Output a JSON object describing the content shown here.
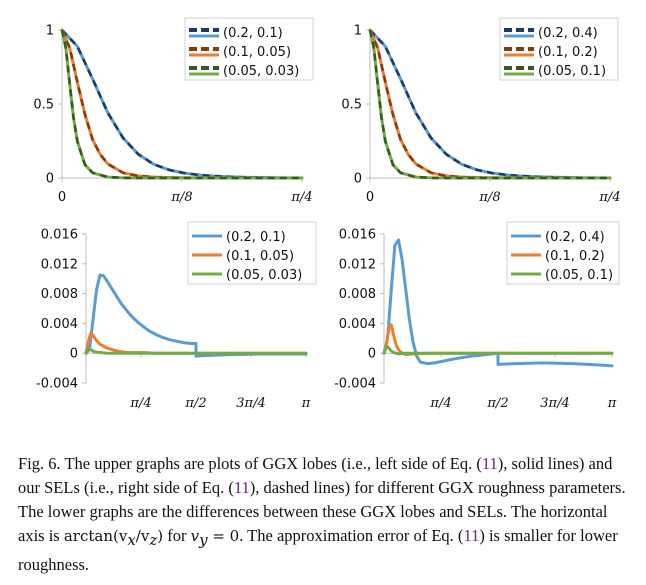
{
  "chart_data": [
    {
      "type": "line",
      "panel": "top-left",
      "xlim": [
        0,
        0.7854
      ],
      "ylim": [
        0,
        1
      ],
      "x_ticks": [
        {
          "v": 0,
          "label": "0"
        },
        {
          "v": 0.3927,
          "label": "π/8"
        },
        {
          "v": 0.7854,
          "label": "π/4"
        }
      ],
      "y_ticks": [
        {
          "v": 0,
          "label": "0"
        },
        {
          "v": 0.5,
          "label": "0.5"
        },
        {
          "v": 1,
          "label": "1"
        }
      ],
      "legend_position": "top-right",
      "series": [
        {
          "name": "(0.2, 0.1)",
          "color": "#5b9bd5",
          "dashed_color": "#1f3864",
          "x": [
            0,
            0.05,
            0.1,
            0.15,
            0.2,
            0.25,
            0.3,
            0.35,
            0.4,
            0.45,
            0.5,
            0.55,
            0.6,
            0.65,
            0.7,
            0.75,
            0.7854
          ],
          "y": [
            1.0,
            0.89,
            0.67,
            0.44,
            0.27,
            0.16,
            0.093,
            0.055,
            0.033,
            0.02,
            0.013,
            0.008,
            0.005,
            0.003,
            0.002,
            0.001,
            0.001
          ]
        },
        {
          "name": "(0.1, 0.05)",
          "color": "#ed7d31",
          "dashed_color": "#843c0c",
          "x": [
            0,
            0.025,
            0.05,
            0.075,
            0.1,
            0.125,
            0.15,
            0.2,
            0.25,
            0.3,
            0.35,
            0.4,
            0.5,
            0.6,
            0.7854
          ],
          "y": [
            1.0,
            0.88,
            0.65,
            0.43,
            0.26,
            0.16,
            0.095,
            0.035,
            0.014,
            0.006,
            0.003,
            0.002,
            0.001,
            0,
            0
          ]
        },
        {
          "name": "(0.05, 0.03)",
          "color": "#70ad47",
          "dashed_color": "#385723",
          "x": [
            0,
            0.0125,
            0.025,
            0.0375,
            0.05,
            0.075,
            0.1,
            0.15,
            0.2,
            0.3,
            0.7854
          ],
          "y": [
            1.0,
            0.88,
            0.64,
            0.41,
            0.25,
            0.09,
            0.035,
            0.006,
            0.001,
            0,
            0
          ]
        }
      ]
    },
    {
      "type": "line",
      "panel": "top-right",
      "xlim": [
        0,
        0.7854
      ],
      "ylim": [
        0,
        1
      ],
      "x_ticks": [
        {
          "v": 0,
          "label": "0"
        },
        {
          "v": 0.3927,
          "label": "π/8"
        },
        {
          "v": 0.7854,
          "label": "π/4"
        }
      ],
      "y_ticks": [
        {
          "v": 0,
          "label": "0"
        },
        {
          "v": 0.5,
          "label": "0.5"
        },
        {
          "v": 1,
          "label": "1"
        }
      ],
      "legend_position": "top-right",
      "series": [
        {
          "name": "(0.2, 0.4)",
          "color": "#5b9bd5",
          "dashed_color": "#1f3864",
          "x": [
            0,
            0.05,
            0.1,
            0.15,
            0.2,
            0.25,
            0.3,
            0.35,
            0.4,
            0.45,
            0.5,
            0.55,
            0.6,
            0.65,
            0.7,
            0.75,
            0.7854
          ],
          "y": [
            1.0,
            0.89,
            0.67,
            0.44,
            0.27,
            0.16,
            0.093,
            0.055,
            0.033,
            0.02,
            0.013,
            0.008,
            0.005,
            0.003,
            0.002,
            0.001,
            0.001
          ]
        },
        {
          "name": "(0.1, 0.2)",
          "color": "#ed7d31",
          "dashed_color": "#843c0c",
          "x": [
            0,
            0.025,
            0.05,
            0.075,
            0.1,
            0.125,
            0.15,
            0.2,
            0.25,
            0.3,
            0.35,
            0.4,
            0.5,
            0.6,
            0.7854
          ],
          "y": [
            1.0,
            0.88,
            0.65,
            0.43,
            0.26,
            0.16,
            0.095,
            0.035,
            0.014,
            0.006,
            0.003,
            0.002,
            0.001,
            0,
            0
          ]
        },
        {
          "name": "(0.05, 0.1)",
          "color": "#70ad47",
          "dashed_color": "#385723",
          "x": [
            0,
            0.0125,
            0.025,
            0.0375,
            0.05,
            0.075,
            0.1,
            0.15,
            0.2,
            0.3,
            0.7854
          ],
          "y": [
            1.0,
            0.88,
            0.64,
            0.41,
            0.25,
            0.09,
            0.035,
            0.006,
            0.001,
            0,
            0
          ]
        }
      ]
    },
    {
      "type": "line",
      "panel": "bottom-left",
      "xlim": [
        0,
        3.1416
      ],
      "ylim": [
        -0.004,
        0.016
      ],
      "x_ticks": [
        {
          "v": 0.7854,
          "label": "π/4"
        },
        {
          "v": 1.5708,
          "label": "π/2"
        },
        {
          "v": 2.3562,
          "label": "3π/4"
        },
        {
          "v": 3.1416,
          "label": "π"
        }
      ],
      "y_ticks": [
        {
          "v": -0.004,
          "label": "-0.004"
        },
        {
          "v": 0,
          "label": "0"
        },
        {
          "v": 0.004,
          "label": "0.004"
        },
        {
          "v": 0.008,
          "label": "0.008"
        },
        {
          "v": 0.012,
          "label": "0.012"
        },
        {
          "v": 0.016,
          "label": "0.016"
        }
      ],
      "legend_position": "top-right",
      "series": [
        {
          "name": "(0.2, 0.1)",
          "color": "#5b9bd5",
          "x": [
            0,
            0.05,
            0.1,
            0.15,
            0.2,
            0.25,
            0.3,
            0.4,
            0.5,
            0.6,
            0.7,
            0.8,
            0.9,
            1.0,
            1.1,
            1.2,
            1.3,
            1.4,
            1.5,
            1.5708,
            1.5709,
            1.7,
            2.0,
            2.5,
            3.0,
            3.1416
          ],
          "y": [
            0,
            0.0005,
            0.0045,
            0.0085,
            0.0105,
            0.0104,
            0.0097,
            0.0082,
            0.0067,
            0.0055,
            0.0045,
            0.0037,
            0.003,
            0.0025,
            0.0021,
            0.0018,
            0.0016,
            0.0014,
            0.0013,
            0.0013,
            -0.0004,
            -0.0003,
            -0.0002,
            -0.0001,
            -0.0001,
            -0.0001
          ]
        },
        {
          "name": "(0.1, 0.05)",
          "color": "#ed7d31",
          "x": [
            0,
            0.04,
            0.07,
            0.1,
            0.15,
            0.2,
            0.3,
            0.4,
            0.5,
            0.6,
            0.8,
            1.0,
            1.5,
            2.0,
            3.1416
          ],
          "y": [
            0,
            0.0018,
            0.0027,
            0.0024,
            0.0017,
            0.0012,
            0.0007,
            0.0004,
            0.0002,
            0.0001,
            0.0001,
            0,
            0,
            0,
            0
          ]
        },
        {
          "name": "(0.05, 0.03)",
          "color": "#70ad47",
          "x": [
            0,
            0.02,
            0.035,
            0.05,
            0.08,
            0.12,
            0.2,
            0.3,
            0.5,
            1.0,
            2.0,
            3.1416
          ],
          "y": [
            0,
            0.0004,
            0.0007,
            0.0006,
            0.0004,
            0.0002,
            0.0001,
            0,
            0,
            0,
            0,
            0
          ]
        }
      ]
    },
    {
      "type": "line",
      "panel": "bottom-right",
      "xlim": [
        0,
        3.1416
      ],
      "ylim": [
        -0.004,
        0.016
      ],
      "x_ticks": [
        {
          "v": 0.7854,
          "label": "π/4"
        },
        {
          "v": 1.5708,
          "label": "π/2"
        },
        {
          "v": 2.3562,
          "label": "3π/4"
        },
        {
          "v": 3.1416,
          "label": "π"
        }
      ],
      "y_ticks": [
        {
          "v": -0.004,
          "label": "-0.004"
        },
        {
          "v": 0,
          "label": "0"
        },
        {
          "v": 0.004,
          "label": "0.004"
        },
        {
          "v": 0.008,
          "label": "0.008"
        },
        {
          "v": 0.012,
          "label": "0.012"
        },
        {
          "v": 0.016,
          "label": "0.016"
        }
      ],
      "legend_position": "top-right",
      "series": [
        {
          "name": "(0.2, 0.4)",
          "color": "#5b9bd5",
          "x": [
            0,
            0.05,
            0.1,
            0.15,
            0.2,
            0.25,
            0.3,
            0.35,
            0.4,
            0.45,
            0.5,
            0.6,
            0.7,
            0.8,
            0.9,
            1.0,
            1.2,
            1.4,
            1.5708,
            1.5709,
            1.8,
            2.2,
            2.6,
            3.0,
            3.1416
          ],
          "y": [
            0,
            0.002,
            0.0085,
            0.0145,
            0.0152,
            0.0125,
            0.0085,
            0.0045,
            0.0015,
            -0.0004,
            -0.0012,
            -0.0014,
            -0.0013,
            -0.0011,
            -0.0009,
            -0.0007,
            -0.0004,
            -0.0002,
            0,
            -0.0015,
            -0.0014,
            -0.0013,
            -0.0014,
            -0.0016,
            -0.0017
          ]
        },
        {
          "name": "(0.1, 0.2)",
          "color": "#ed7d31",
          "x": [
            0,
            0.04,
            0.07,
            0.1,
            0.13,
            0.17,
            0.22,
            0.3,
            0.4,
            0.6,
            1.0,
            2.0,
            3.1416
          ],
          "y": [
            0,
            0.0015,
            0.0035,
            0.0038,
            0.0025,
            0.001,
            0.0002,
            -0.0002,
            -0.0001,
            0,
            0,
            0,
            0
          ]
        },
        {
          "name": "(0.05, 0.1)",
          "color": "#70ad47",
          "x": [
            0,
            0.02,
            0.04,
            0.06,
            0.09,
            0.13,
            0.2,
            0.3,
            0.5,
            1.0,
            3.1416
          ],
          "y": [
            0,
            0.0005,
            0.0009,
            0.0008,
            0.0004,
            0.0001,
            -0.0001,
            0,
            0,
            0,
            0
          ]
        }
      ]
    }
  ],
  "caption": {
    "part1": "Fig. 6.  The upper graphs are plots of GGX lobes (i.e., left side of Eq. (",
    "ref1": "11",
    "part2": "), solid lines) and our SELs (i.e., right side of Eq. (",
    "ref2": "11",
    "part3": "), dashed lines) for different GGX roughness parameters. The lower graphs are the differences between these GGX lobes and SELs. The horizontal axis is ",
    "math1": "arctan(v",
    "math1_sub1": "x",
    "math1_mid": "/v",
    "math1_sub2": "z",
    "math1_end": ")",
    "part4": " for ",
    "math2": "v",
    "math2_sub": "y",
    "math2_end": " = 0",
    "part5": ". The approximation error of Eq. (",
    "ref3": "11",
    "part6": ") is smaller for lower roughness."
  }
}
